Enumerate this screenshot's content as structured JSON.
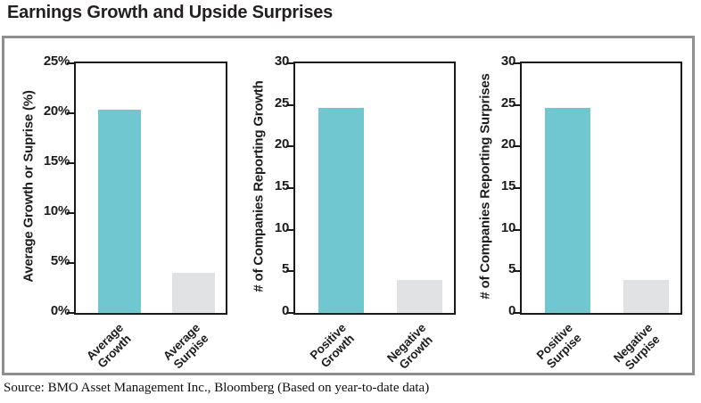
{
  "title": "Earnings Growth and Upside Surprises",
  "source": "Source: BMO Asset Management Inc., Bloomberg (Based on year-to-date data)",
  "colors": {
    "bar_primary": "#71C7CF",
    "bar_secondary": "#E0E2E4",
    "axis": "#1a1a1a",
    "frame": "#8f8f8f",
    "text": "#231f20"
  },
  "chart_data": [
    {
      "type": "bar",
      "title": "",
      "ylabel": "Average Growth or Suprise (%)",
      "xlabel": "",
      "categories": [
        [
          "Average",
          "Growth"
        ],
        [
          "Average",
          "Surpise"
        ]
      ],
      "values": [
        20.4,
        4.0
      ],
      "ylim": [
        0,
        25
      ],
      "ytick_labels": [
        "0%",
        "5%",
        "10%",
        "15%",
        "20%",
        "25%"
      ],
      "grid": false,
      "legend": "none"
    },
    {
      "type": "bar",
      "title": "",
      "ylabel": "# of Companies Reporting Growth",
      "xlabel": "",
      "categories": [
        [
          "Positive",
          "Growth"
        ],
        [
          "Negative",
          "Growth"
        ]
      ],
      "values": [
        24.7,
        4.0
      ],
      "ylim": [
        0,
        30
      ],
      "ytick_labels": [
        "0",
        "5",
        "10",
        "15",
        "20",
        "25",
        "30"
      ],
      "grid": false,
      "legend": "none"
    },
    {
      "type": "bar",
      "title": "",
      "ylabel": "# of Companies Reporting Surprises",
      "xlabel": "",
      "categories": [
        [
          "Positive",
          "Surpise"
        ],
        [
          "Negative",
          "Surpise"
        ]
      ],
      "values": [
        24.7,
        4.0
      ],
      "ylim": [
        0,
        30
      ],
      "ytick_labels": [
        "0",
        "5",
        "10",
        "15",
        "20",
        "25",
        "30"
      ],
      "grid": false,
      "legend": "none"
    }
  ]
}
